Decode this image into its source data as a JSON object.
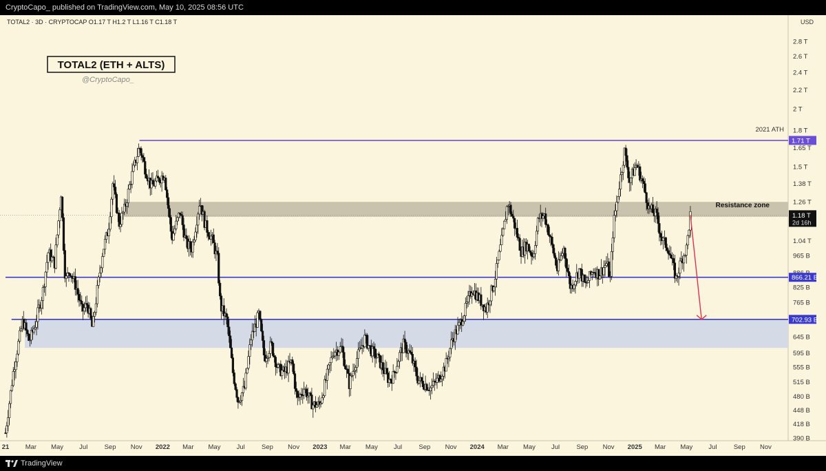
{
  "header": {
    "published": "CryptoCapo_ published on TradingView.com, May 10, 2025 08:56 UTC"
  },
  "footer": {
    "brand": "TradingView"
  },
  "chart_data": {
    "type": "candlestick",
    "symbol_line": "TOTAL2 · 3D · CRYPTOCAP  O1.17 T  H1.2 T  L1.16 T  C1.18 T",
    "title": "TOTAL2 (ETH + ALTS)",
    "subtitle": "@CryptoCapo_",
    "currency": "USD",
    "y_scale": "log",
    "ylim": [
      0.39,
      3.1
    ],
    "y_ticks": [
      {
        "v": 2.8,
        "label": "2.8 T"
      },
      {
        "v": 2.6,
        "label": "2.6 T"
      },
      {
        "v": 2.4,
        "label": "2.4 T"
      },
      {
        "v": 2.2,
        "label": "2.2 T"
      },
      {
        "v": 2.0,
        "label": "2 T"
      },
      {
        "v": 1.8,
        "label": "1.8 T"
      },
      {
        "v": 1.65,
        "label": "1.65 T"
      },
      {
        "v": 1.5,
        "label": "1.5 T"
      },
      {
        "v": 1.38,
        "label": "1.38 T"
      },
      {
        "v": 1.26,
        "label": "1.26 T"
      },
      {
        "v": 1.04,
        "label": "1.04 T"
      },
      {
        "v": 0.965,
        "label": "965 B"
      },
      {
        "v": 0.886,
        "label": "886 B"
      },
      {
        "v": 0.825,
        "label": "825 B"
      },
      {
        "v": 0.765,
        "label": "765 B"
      },
      {
        "v": 0.645,
        "label": "645 B"
      },
      {
        "v": 0.595,
        "label": "595 B"
      },
      {
        "v": 0.555,
        "label": "555 B"
      },
      {
        "v": 0.515,
        "label": "515 B"
      },
      {
        "v": 0.48,
        "label": "480 B"
      },
      {
        "v": 0.448,
        "label": "448 B"
      },
      {
        "v": 0.418,
        "label": "418 B"
      },
      {
        "v": 0.39,
        "label": "390 B"
      }
    ],
    "xlim": [
      "2021-01-01",
      "2025-12-15"
    ],
    "x_ticks": [
      {
        "d": "2021-01-01",
        "label": "21",
        "year": true
      },
      {
        "d": "2021-03-01",
        "label": "Mar"
      },
      {
        "d": "2021-05-01",
        "label": "May"
      },
      {
        "d": "2021-07-01",
        "label": "Jul"
      },
      {
        "d": "2021-09-01",
        "label": "Sep"
      },
      {
        "d": "2021-11-01",
        "label": "Nov"
      },
      {
        "d": "2022-01-01",
        "label": "2022",
        "year": true
      },
      {
        "d": "2022-03-01",
        "label": "Mar"
      },
      {
        "d": "2022-05-01",
        "label": "May"
      },
      {
        "d": "2022-07-01",
        "label": "Jul"
      },
      {
        "d": "2022-09-01",
        "label": "Sep"
      },
      {
        "d": "2022-11-01",
        "label": "Nov"
      },
      {
        "d": "2023-01-01",
        "label": "2023",
        "year": true
      },
      {
        "d": "2023-03-01",
        "label": "Mar"
      },
      {
        "d": "2023-05-01",
        "label": "May"
      },
      {
        "d": "2023-07-01",
        "label": "Jul"
      },
      {
        "d": "2023-09-01",
        "label": "Sep"
      },
      {
        "d": "2023-11-01",
        "label": "Nov"
      },
      {
        "d": "2024-01-01",
        "label": "2024",
        "year": true
      },
      {
        "d": "2024-03-01",
        "label": "Mar"
      },
      {
        "d": "2024-05-01",
        "label": "May"
      },
      {
        "d": "2024-07-01",
        "label": "Jul"
      },
      {
        "d": "2024-09-01",
        "label": "Sep"
      },
      {
        "d": "2024-11-01",
        "label": "Nov"
      },
      {
        "d": "2025-01-01",
        "label": "2025",
        "year": true
      },
      {
        "d": "2025-03-01",
        "label": "Mar"
      },
      {
        "d": "2025-05-01",
        "label": "May"
      },
      {
        "d": "2025-07-01",
        "label": "Jul"
      },
      {
        "d": "2025-09-01",
        "label": "Sep"
      },
      {
        "d": "2025-11-01",
        "label": "Nov"
      }
    ],
    "series": [
      {
        "points": [
          [
            "2021-01-01",
            0.4
          ],
          [
            "2021-01-20",
            0.55
          ],
          [
            "2021-02-10",
            0.7
          ],
          [
            "2021-02-25",
            0.63
          ],
          [
            "2021-03-10",
            0.68
          ],
          [
            "2021-03-28",
            0.8
          ],
          [
            "2021-04-10",
            0.98
          ],
          [
            "2021-04-25",
            0.93
          ],
          [
            "2021-05-10",
            1.32
          ],
          [
            "2021-05-20",
            0.85
          ],
          [
            "2021-05-30",
            0.9
          ],
          [
            "2021-06-15",
            0.82
          ],
          [
            "2021-06-28",
            0.73
          ],
          [
            "2021-07-10",
            0.76
          ],
          [
            "2021-07-22",
            0.67
          ],
          [
            "2021-08-01",
            0.8
          ],
          [
            "2021-08-15",
            0.99
          ],
          [
            "2021-08-28",
            1.1
          ],
          [
            "2021-09-07",
            1.38
          ],
          [
            "2021-09-22",
            1.13
          ],
          [
            "2021-10-05",
            1.22
          ],
          [
            "2021-10-20",
            1.42
          ],
          [
            "2021-11-08",
            1.66
          ],
          [
            "2021-11-20",
            1.5
          ],
          [
            "2021-12-05",
            1.36
          ],
          [
            "2021-12-20",
            1.4
          ],
          [
            "2022-01-05",
            1.45
          ],
          [
            "2022-01-22",
            1.05
          ],
          [
            "2022-02-10",
            1.2
          ],
          [
            "2022-02-25",
            1.02
          ],
          [
            "2022-03-10",
            1.0
          ],
          [
            "2022-03-28",
            1.27
          ],
          [
            "2022-04-10",
            1.12
          ],
          [
            "2022-04-25",
            1.05
          ],
          [
            "2022-05-08",
            0.95
          ],
          [
            "2022-05-15",
            0.75
          ],
          [
            "2022-05-30",
            0.7
          ],
          [
            "2022-06-13",
            0.54
          ],
          [
            "2022-06-25",
            0.47
          ],
          [
            "2022-07-10",
            0.5
          ],
          [
            "2022-07-25",
            0.64
          ],
          [
            "2022-08-12",
            0.72
          ],
          [
            "2022-08-25",
            0.58
          ],
          [
            "2022-09-10",
            0.62
          ],
          [
            "2022-09-25",
            0.55
          ],
          [
            "2022-10-10",
            0.54
          ],
          [
            "2022-10-28",
            0.57
          ],
          [
            "2022-11-09",
            0.47
          ],
          [
            "2022-11-25",
            0.5
          ],
          [
            "2022-12-15",
            0.46
          ],
          [
            "2022-12-31",
            0.46
          ],
          [
            "2023-01-15",
            0.52
          ],
          [
            "2023-02-01",
            0.6
          ],
          [
            "2023-02-20",
            0.61
          ],
          [
            "2023-03-10",
            0.51
          ],
          [
            "2023-03-25",
            0.57
          ],
          [
            "2023-04-15",
            0.64
          ],
          [
            "2023-05-01",
            0.6
          ],
          [
            "2023-05-15",
            0.58
          ],
          [
            "2023-06-10",
            0.52
          ],
          [
            "2023-06-20",
            0.53
          ],
          [
            "2023-07-05",
            0.59
          ],
          [
            "2023-07-14",
            0.62
          ],
          [
            "2023-07-30",
            0.59
          ],
          [
            "2023-08-17",
            0.52
          ],
          [
            "2023-09-01",
            0.51
          ],
          [
            "2023-09-15",
            0.5
          ],
          [
            "2023-10-01",
            0.52
          ],
          [
            "2023-10-20",
            0.56
          ],
          [
            "2023-11-05",
            0.64
          ],
          [
            "2023-11-20",
            0.68
          ],
          [
            "2023-12-05",
            0.74
          ],
          [
            "2023-12-20",
            0.82
          ],
          [
            "2024-01-05",
            0.78
          ],
          [
            "2024-01-22",
            0.74
          ],
          [
            "2024-02-10",
            0.85
          ],
          [
            "2024-02-28",
            1.05
          ],
          [
            "2024-03-12",
            1.26
          ],
          [
            "2024-03-25",
            1.15
          ],
          [
            "2024-04-13",
            0.98
          ],
          [
            "2024-04-25",
            1.02
          ],
          [
            "2024-05-10",
            0.96
          ],
          [
            "2024-05-22",
            1.16
          ],
          [
            "2024-06-05",
            1.18
          ],
          [
            "2024-06-20",
            1.04
          ],
          [
            "2024-07-05",
            0.9
          ],
          [
            "2024-07-20",
            1.0
          ],
          [
            "2024-08-05",
            0.82
          ],
          [
            "2024-08-25",
            0.9
          ],
          [
            "2024-09-08",
            0.83
          ],
          [
            "2024-09-27",
            0.9
          ],
          [
            "2024-10-10",
            0.88
          ],
          [
            "2024-10-28",
            0.93
          ],
          [
            "2024-11-05",
            0.86
          ],
          [
            "2024-11-12",
            1.12
          ],
          [
            "2024-11-25",
            1.35
          ],
          [
            "2024-12-08",
            1.62
          ],
          [
            "2024-12-20",
            1.4
          ],
          [
            "2025-01-05",
            1.52
          ],
          [
            "2025-01-20",
            1.38
          ],
          [
            "2025-02-03",
            1.22
          ],
          [
            "2025-02-20",
            1.18
          ],
          [
            "2025-03-04",
            1.05
          ],
          [
            "2025-03-20",
            1.0
          ],
          [
            "2025-04-07",
            0.86
          ],
          [
            "2025-04-20",
            0.95
          ],
          [
            "2025-05-01",
            1.0
          ],
          [
            "2025-05-10",
            1.18
          ]
        ]
      }
    ],
    "levels": [
      {
        "label": "1.71 T",
        "value": 1.71,
        "from": "2021-11-08",
        "color": "#6a4fd6",
        "note": "2021 ATH"
      },
      {
        "label": "866.21 B",
        "value": 0.86621,
        "from": "2021-01-01",
        "color": "#3a3ad0"
      },
      {
        "label": "702.93 B",
        "value": 0.70293,
        "from": "2021-01-15",
        "color": "#3a3ad0"
      }
    ],
    "zones": [
      {
        "top": 1.26,
        "bottom": 1.17,
        "color": "#c9c2ac",
        "label": "Resistance zone"
      },
      {
        "top": 0.70293,
        "bottom": 0.61,
        "color": "#d5dbe6"
      }
    ],
    "current_price": {
      "label": "1.18 T",
      "value": 1.18,
      "timer": "2d 16h"
    },
    "projection": {
      "from_date": "2025-05-10",
      "from_value": 1.18,
      "to_date": "2025-06-05",
      "to_value": 0.70293,
      "color": "#e0304a"
    }
  }
}
